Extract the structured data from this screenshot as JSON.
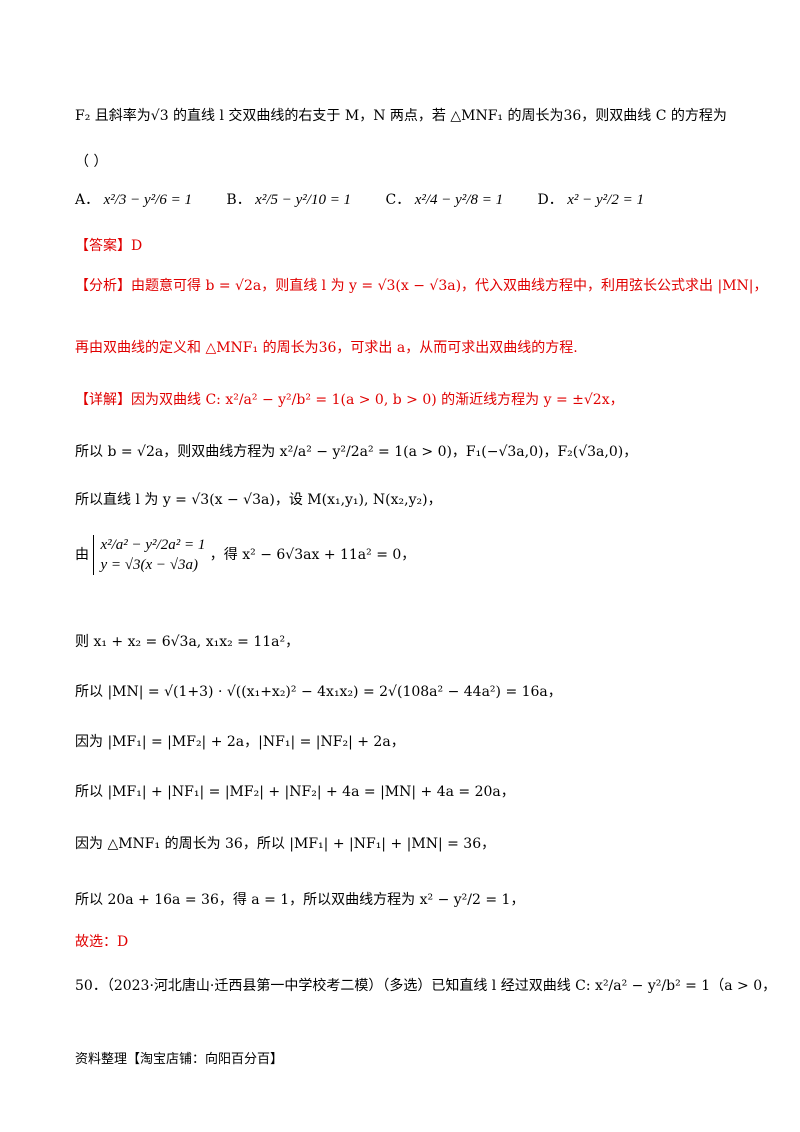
{
  "q49": {
    "line1": "F₂ 且斜率为√3 的直线 l 交双曲线的右支于 M，N 两点，若 △MNF₁ 的周长为36，则双曲线 C 的方程为",
    "paren": "（    ）",
    "options": [
      {
        "label": "A．",
        "expr": "x²/3 − y²/6 = 1"
      },
      {
        "label": "B．",
        "expr": "x²/5 − y²/10 = 1"
      },
      {
        "label": "C．",
        "expr": "x²/4 − y²/8 = 1"
      },
      {
        "label": "D．",
        "expr": "x² − y²/2 = 1"
      }
    ]
  },
  "answer": "【答案】D",
  "analysis": {
    "line1": "【分析】由题意可得 b = √2a，则直线 l 为 y = √3(x − √3a)，代入双曲线方程中，利用弦长公式求出 |MN|，",
    "line2": "再由双曲线的定义和 △MNF₁ 的周长为36，可求出 a，从而可求出双曲线的方程."
  },
  "detail": {
    "l1": "【详解】因为双曲线 C: x²/a² − y²/b² = 1(a > 0, b > 0) 的渐近线方程为 y = ±√2x，",
    "l2": "所以 b = √2a，则双曲线方程为 x²/a² − y²/2a² = 1(a > 0)，F₁(−√3a,0)，F₂(√3a,0)，",
    "l3": "所以直线 l 为 y = √3(x − √3a)，设 M(x₁,y₁), N(x₂,y₂)，",
    "l4a": "x²/a² − y²/2a² = 1",
    "l4b": "y = √3(x − √3a)",
    "l4pre": "由",
    "l4post": "，得  x² − 6√3ax + 11a² = 0，",
    "l5": "则 x₁ + x₂ = 6√3a, x₁x₂ = 11a²，",
    "l6": "所以 |MN| = √(1+3) · √((x₁+x₂)² − 4x₁x₂) = 2√(108a² − 44a²) = 16a，",
    "l7": "因为 |MF₁| = |MF₂| + 2a，|NF₁| = |NF₂| + 2a，",
    "l8": "所以 |MF₁| + |NF₁| = |MF₂| + |NF₂| + 4a = |MN| + 4a = 20a，",
    "l9": "因为 △MNF₁ 的周长为 36，所以 |MF₁| + |NF₁| + |MN| = 36，",
    "l10": "所以 20a + 16a = 36，得 a = 1，所以双曲线方程为 x² − y²/2 = 1，",
    "l11": "故选：D"
  },
  "q50": "50．（2023·河北唐山·迁西县第一中学校考二模）（多选）已知直线 l 经过双曲线 C: x²/a² − y²/b² = 1（a > 0，",
  "footer": "资料整理【淘宝店铺：向阳百分百】"
}
